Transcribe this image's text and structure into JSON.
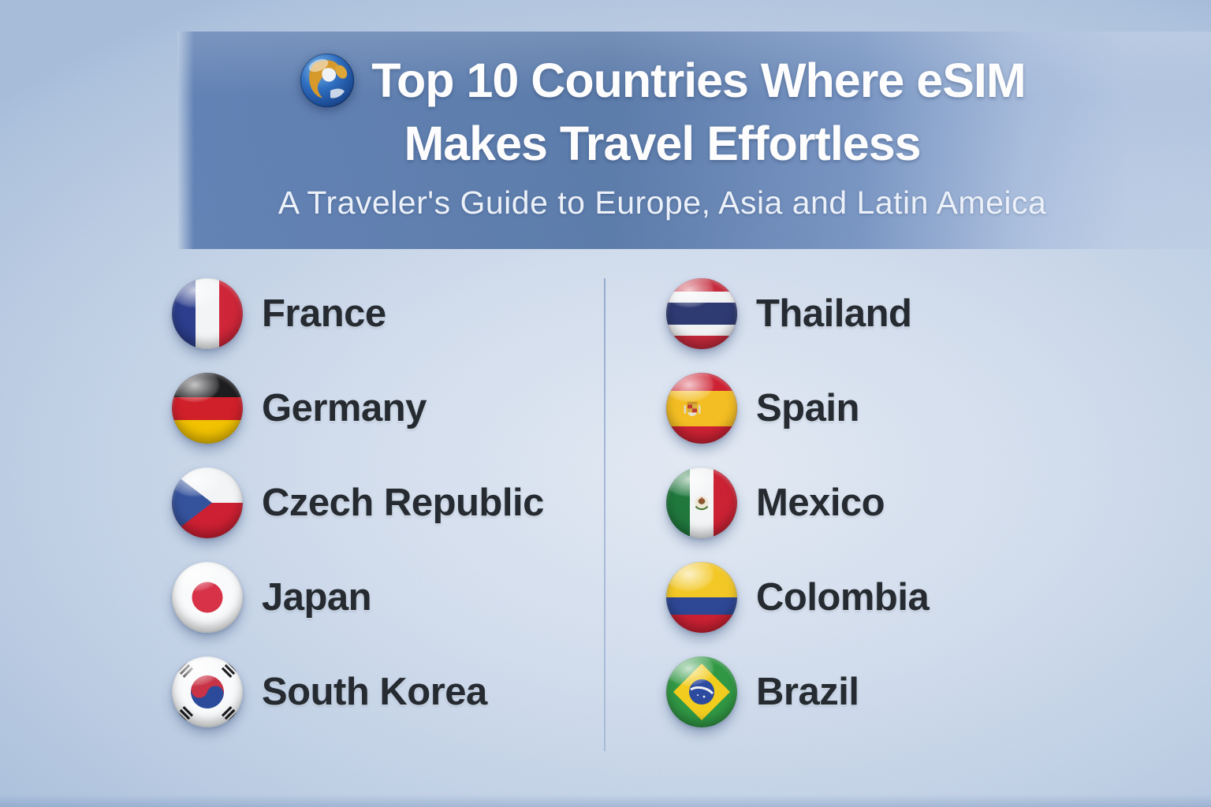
{
  "header": {
    "icon": "globe-icon",
    "title_line1": "Top 10 Countries Where eSIM",
    "title_line2": "Makes Travel Effortless",
    "subtitle": "A Traveler's Guide to Europe, Asia and Latin Ameica"
  },
  "columns": {
    "left": [
      {
        "id": "france",
        "label": "France",
        "icon": "france-flag-icon"
      },
      {
        "id": "germany",
        "label": "Germany",
        "icon": "germany-flag-icon"
      },
      {
        "id": "czech-republic",
        "label": "Czech Republic",
        "icon": "czech-republic-flag-icon"
      },
      {
        "id": "japan",
        "label": "Japan",
        "icon": "japan-flag-icon"
      },
      {
        "id": "south-korea",
        "label": "South Korea",
        "icon": "south-korea-flag-icon"
      }
    ],
    "right": [
      {
        "id": "thailand",
        "label": "Thailand",
        "icon": "thailand-flag-icon"
      },
      {
        "id": "spain",
        "label": "Spain",
        "icon": "spain-flag-icon"
      },
      {
        "id": "mexico",
        "label": "Mexico",
        "icon": "mexico-flag-icon"
      },
      {
        "id": "colombia",
        "label": "Colombia",
        "icon": "colombia-flag-icon"
      },
      {
        "id": "brazil",
        "label": "Brazil",
        "icon": "brazil-flag-icon"
      }
    ]
  },
  "colors": {
    "background": "#c6d4e8",
    "header_band": "#5a7cb2",
    "title_text": "#ffffff",
    "subtitle_text": "#eef3fb",
    "country_text": "#262b31",
    "divider": "#7693c0"
  }
}
